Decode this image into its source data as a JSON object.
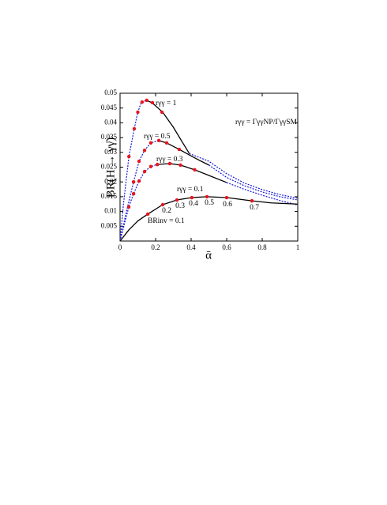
{
  "chart_data": {
    "type": "line",
    "xlabel": "ᾱ",
    "ylabel": "BR(H → γγ̄)",
    "xlim": [
      0,
      1
    ],
    "ylim": [
      0,
      0.05
    ],
    "xticks": [
      0,
      0.2,
      0.4,
      0.6,
      0.8,
      1
    ],
    "yticks": [
      0.005,
      0.01,
      0.015,
      0.02,
      0.025,
      0.03,
      0.035,
      0.04,
      0.045,
      0.05
    ],
    "series": [
      {
        "color": "#1a1ad6",
        "dashed": true,
        "x": [
          0,
          0.02,
          0.05,
          0.08,
          0.1,
          0.12,
          0.15
        ],
        "values": [
          0,
          0.013,
          0.0286,
          0.038,
          0.0436,
          0.047,
          0.0476
        ]
      },
      {
        "color": "#000000",
        "dashed": false,
        "x": [
          0.15,
          0.18,
          0.24,
          0.3,
          0.35,
          0.39
        ],
        "values": [
          0.0476,
          0.0468,
          0.0436,
          0.0385,
          0.0335,
          0.0296
        ]
      },
      {
        "color": "#1a1ad6",
        "dashed": true,
        "x": [
          0.39,
          0.5,
          0.6,
          0.7,
          0.8,
          0.9,
          1
        ],
        "values": [
          0.0296,
          0.027,
          0.0228,
          0.0196,
          0.0174,
          0.0157,
          0.0145
        ]
      },
      {
        "color": "#1a1ad6",
        "dashed": true,
        "x": [
          0,
          0.03,
          0.076,
          0.107,
          0.138,
          0.173,
          0.218
        ],
        "values": [
          0,
          0.0085,
          0.02,
          0.027,
          0.0307,
          0.0332,
          0.034
        ]
      },
      {
        "color": "#000000",
        "dashed": false,
        "x": [
          0.218,
          0.262,
          0.333,
          0.4,
          0.45,
          0.5
        ],
        "values": [
          0.034,
          0.0332,
          0.031,
          0.0288,
          0.0272,
          0.0257
        ]
      },
      {
        "color": "#1a1ad6",
        "dashed": true,
        "x": [
          0.5,
          0.6,
          0.7,
          0.8,
          0.9,
          1
        ],
        "values": [
          0.0257,
          0.0215,
          0.0187,
          0.0166,
          0.015,
          0.0139
        ]
      },
      {
        "color": "#1a1ad6",
        "dashed": true,
        "x": [
          0,
          0.049,
          0.076,
          0.107,
          0.138,
          0.173,
          0.21
        ],
        "values": [
          0,
          0.0115,
          0.016,
          0.0203,
          0.0235,
          0.0252,
          0.0259
        ]
      },
      {
        "color": "#000000",
        "dashed": false,
        "x": [
          0.21,
          0.28,
          0.34,
          0.42,
          0.5,
          0.6
        ],
        "values": [
          0.0259,
          0.0262,
          0.0257,
          0.0241,
          0.0222,
          0.0198
        ]
      },
      {
        "color": "#1a1ad6",
        "dashed": true,
        "x": [
          0.6,
          0.7,
          0.8,
          0.9,
          1
        ],
        "values": [
          0.0198,
          0.0175,
          0.0155,
          0.0137,
          0.0122
        ]
      },
      {
        "color": "#000000",
        "dashed": false,
        "x": [
          0,
          0.05,
          0.1,
          0.156,
          0.24,
          0.32,
          0.404,
          0.489,
          0.6,
          0.742,
          0.85,
          1
        ],
        "values": [
          0,
          0.0038,
          0.0068,
          0.0091,
          0.0123,
          0.0139,
          0.0147,
          0.015,
          0.0147,
          0.0136,
          0.0129,
          0.0125
        ]
      }
    ],
    "markers": {
      "color": "#e8141c",
      "x": [
        0.05,
        0.08,
        0.1,
        0.124,
        0.15,
        0.182,
        0.236,
        0.076,
        0.107,
        0.138,
        0.173,
        0.218,
        0.262,
        0.333,
        0.049,
        0.076,
        0.107,
        0.138,
        0.173,
        0.21,
        0.28,
        0.34,
        0.42,
        0.156,
        0.24,
        0.32,
        0.404,
        0.489,
        0.6,
        0.742
      ],
      "values": [
        0.0286,
        0.038,
        0.0436,
        0.047,
        0.0476,
        0.0468,
        0.0436,
        0.02,
        0.027,
        0.0307,
        0.0332,
        0.034,
        0.0332,
        0.031,
        0.0115,
        0.016,
        0.0203,
        0.0235,
        0.0252,
        0.0259,
        0.0262,
        0.0257,
        0.0241,
        0.0091,
        0.0123,
        0.0139,
        0.0147,
        0.015,
        0.0147,
        0.0136
      ]
    },
    "annotations": [
      "rγγ = 1",
      "rγγ = 0.5",
      "rγγ = 0.3",
      "rγγ = 0.1",
      "BRinv = 0.1",
      "0.2",
      "0.3",
      "0.4",
      "0.5",
      "0.6",
      "0.7",
      "rγγ = ΓγγNP/ΓγγSM"
    ]
  }
}
